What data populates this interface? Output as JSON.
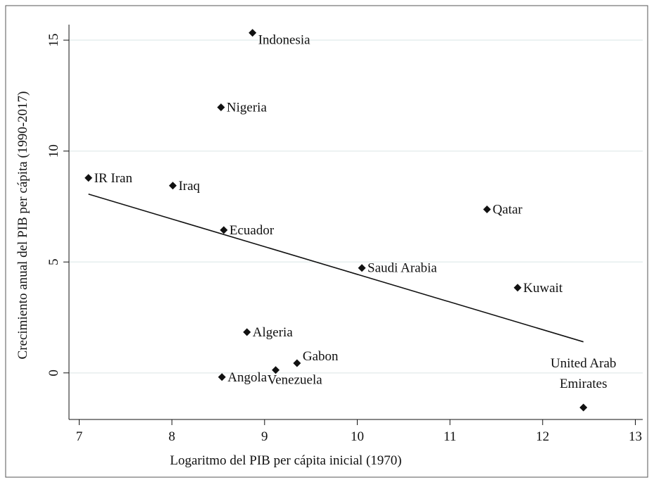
{
  "chart_data": {
    "type": "scatter",
    "x_label": "Logaritmo del PIB per cápita inicial (1970)",
    "y_label": "Crecimiento anual del PIB per cápita (1990-2017)",
    "labels": [
      "Indonesia",
      "Nigeria",
      "IR Iran",
      "Iraq",
      "Ecuador",
      "Qatar",
      "Saudi Arabia",
      "Kuwait",
      "Algeria",
      "Gabon",
      "Venezuela",
      "Angola",
      "United Arab Emirates"
    ],
    "x": [
      8.87,
      8.53,
      7.1,
      8.01,
      8.56,
      11.4,
      10.05,
      11.73,
      8.81,
      9.35,
      9.12,
      8.54,
      12.44
    ],
    "values": [
      15.33,
      11.97,
      8.79,
      8.44,
      6.44,
      7.37,
      4.73,
      3.84,
      1.84,
      0.44,
      0.13,
      -0.19,
      -1.56
    ],
    "fit": {
      "x": [
        7.1,
        12.44
      ],
      "y": [
        8.06,
        1.4
      ]
    },
    "color": "#111111",
    "xlim": [
      6.89,
      13.08
    ],
    "ylim": [
      -2.1,
      15.7
    ],
    "xticks": [
      7,
      8,
      9,
      10,
      11,
      12,
      13
    ],
    "yticks": [
      0,
      5,
      10,
      15
    ],
    "grid": true
  }
}
